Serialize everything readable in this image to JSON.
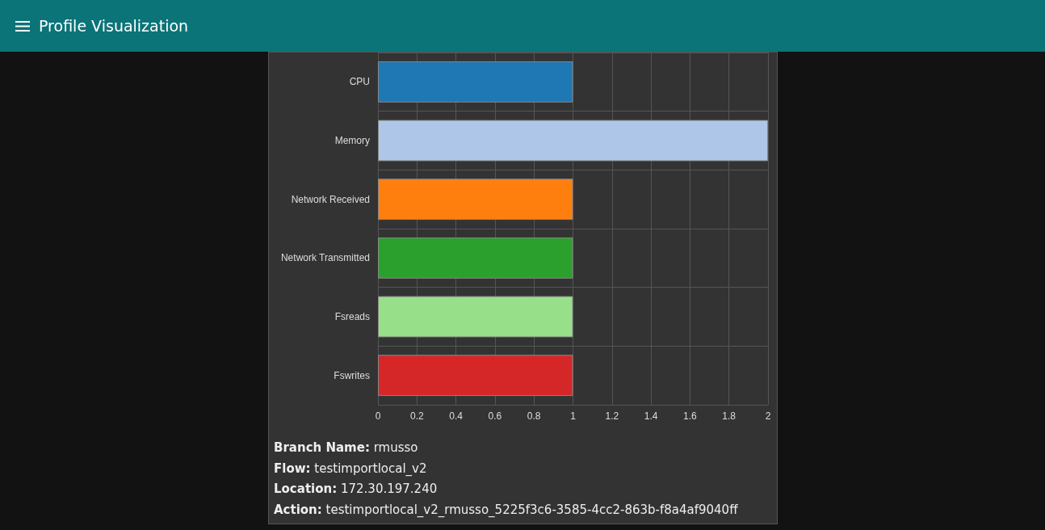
{
  "chart_data": {
    "type": "bar",
    "orientation": "horizontal",
    "title": "Profile Visualization",
    "categories": [
      "CPU",
      "Memory",
      "Network Received",
      "Network Transmitted",
      "Fsreads",
      "Fswrites"
    ],
    "values": [
      1,
      2,
      1,
      1,
      1,
      1
    ],
    "colors": [
      "#1f77b4",
      "#aec7e8",
      "#ff7f0e",
      "#2ca02c",
      "#98df8a",
      "#d62728"
    ],
    "xlim": [
      0,
      2
    ],
    "xticks": [
      0,
      0.2,
      0.4,
      0.6,
      0.8,
      1,
      1.2,
      1.4,
      1.6,
      1.8,
      2
    ],
    "grid": true,
    "annotations": [
      "Branch Name: rmusso",
      "Flow: testimportlocal_v2",
      "Location: 172.30.197.240",
      "Action: testimportlocal_v2_rmusso_5225f3c6-3585-4cc2-863b-f8a4af9040ff"
    ]
  }
}
